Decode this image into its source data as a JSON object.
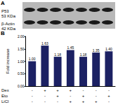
{
  "panel_a": {
    "label": "A",
    "bands": [
      {
        "name": "P53",
        "size": "53 KDa"
      },
      {
        "name": "β-Actin",
        "size": "42 KDa"
      }
    ]
  },
  "chart_data": {
    "type": "bar",
    "panel": "B",
    "y_label": "Fold increase",
    "categories": [
      null,
      null,
      null,
      null,
      null,
      null,
      null
    ],
    "values": [
      1.0,
      1.63,
      1.18,
      1.45,
      1.18,
      1.35,
      1.4
    ],
    "value_labels": [
      "1.00",
      "1.63",
      "1.18",
      "1.45",
      "1.18",
      "1.35",
      "1.40"
    ],
    "color": "#1c2163",
    "ylim": [
      0,
      2
    ],
    "yticks": [
      {
        "value": 0,
        "label": "0.00"
      },
      {
        "value": 0.5,
        "label": "0.50"
      },
      {
        "value": 1,
        "label": "1.00"
      },
      {
        "value": 1.5,
        "label": "1.50"
      },
      {
        "value": 2,
        "label": "2.00"
      }
    ],
    "data_labels": true,
    "treatments": [
      {
        "name": "Dex",
        "signs": [
          "-",
          "+",
          "+",
          "+",
          "-",
          "-",
          "-"
        ]
      },
      {
        "name": "Eto",
        "signs": [
          "-",
          "-",
          "+",
          "-",
          "+",
          "-",
          "+"
        ]
      },
      {
        "name": "LiCl",
        "signs": [
          "-",
          "-",
          "-",
          "+",
          "+",
          "+",
          "-"
        ]
      }
    ]
  }
}
